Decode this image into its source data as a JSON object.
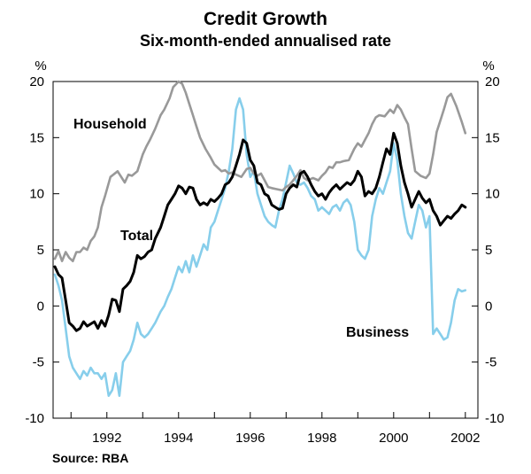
{
  "chart_data": {
    "type": "line",
    "title": "Credit Growth",
    "subtitle": "Six-month-ended annualised rate",
    "unit_left": "%",
    "unit_right": "%",
    "source": "Source: RBA",
    "xlabel": "",
    "ylabel": "%",
    "xlim": [
      1990.5,
      2002.35
    ],
    "ylim": [
      -10,
      20
    ],
    "x_ticks": [
      1992,
      1994,
      1996,
      1998,
      2000,
      2002
    ],
    "x_tick_labels": [
      "1992",
      "1994",
      "1996",
      "1998",
      "2000",
      "2002"
    ],
    "y_ticks": [
      20,
      15,
      10,
      5,
      0,
      -5,
      -10
    ],
    "y_tick_labels": [
      "20",
      "15",
      "10",
      "5",
      "0",
      "-5",
      "-10"
    ],
    "grid": false,
    "series": [
      {
        "name": "Household",
        "label": "Household",
        "color": "#999999",
        "x": [
          1990.55,
          1990.65,
          1990.75,
          1990.85,
          1990.95,
          1991.05,
          1991.15,
          1991.25,
          1991.35,
          1991.45,
          1991.55,
          1991.65,
          1991.75,
          1991.85,
          1991.95,
          1992.1,
          1992.3,
          1992.5,
          1992.6,
          1992.7,
          1992.85,
          1993.0,
          1993.1,
          1993.2,
          1993.35,
          1993.5,
          1993.6,
          1993.75,
          1993.85,
          1994.0,
          1994.1,
          1994.2,
          1994.3,
          1994.4,
          1994.5,
          1994.6,
          1994.75,
          1994.9,
          1995.0,
          1995.1,
          1995.2,
          1995.3,
          1995.4,
          1995.5,
          1995.6,
          1995.75,
          1995.9,
          1996.0,
          1996.1,
          1996.2,
          1996.3,
          1996.4,
          1996.5,
          1996.6,
          1996.75,
          1996.9,
          1997.0,
          1997.1,
          1997.2,
          1997.3,
          1997.4,
          1997.5,
          1997.6,
          1997.75,
          1997.9,
          1998.0,
          1998.1,
          1998.2,
          1998.3,
          1998.4,
          1998.5,
          1998.6,
          1998.75,
          1998.9,
          1999.0,
          1999.1,
          1999.2,
          1999.3,
          1999.4,
          1999.5,
          1999.6,
          1999.75,
          1999.9,
          2000.0,
          2000.1,
          2000.2,
          2000.3,
          2000.4,
          2000.5,
          2000.6,
          2000.75,
          2000.9,
          2001.0,
          2001.1,
          2001.2,
          2001.3,
          2001.4,
          2001.5,
          2001.6,
          2001.75,
          2001.9,
          2002.0
        ],
        "y": [
          4.2,
          4.9,
          4.0,
          4.8,
          4.3,
          4.0,
          4.8,
          4.8,
          5.2,
          5.0,
          5.8,
          6.2,
          7.0,
          8.8,
          9.8,
          11.5,
          12.0,
          11.0,
          11.7,
          11.6,
          12.0,
          13.5,
          14.2,
          14.8,
          15.8,
          17.0,
          17.5,
          18.5,
          19.5,
          20.0,
          19.8,
          19.0,
          18.0,
          17.0,
          16.0,
          15.0,
          14.0,
          13.2,
          12.6,
          12.3,
          12.0,
          12.1,
          11.8,
          11.9,
          11.7,
          11.5,
          12.2,
          12.3,
          11.8,
          11.6,
          11.8,
          11.2,
          10.6,
          10.5,
          10.4,
          10.3,
          10.6,
          10.8,
          11.2,
          11.6,
          12.1,
          11.4,
          11.2,
          11.4,
          11.2,
          11.6,
          11.9,
          12.4,
          12.3,
          12.8,
          12.8,
          12.9,
          13.0,
          14.0,
          14.5,
          14.2,
          14.8,
          15.4,
          16.2,
          16.8,
          17.0,
          16.9,
          17.5,
          17.2,
          17.9,
          17.5,
          16.8,
          16.2,
          14.0,
          12.0,
          11.6,
          11.4,
          11.8,
          13.5,
          15.5,
          16.5,
          17.5,
          18.6,
          18.9,
          17.8,
          16.4,
          15.4
        ]
      },
      {
        "name": "Total",
        "label": "Total",
        "color": "#000000",
        "x": [
          1990.55,
          1990.65,
          1990.75,
          1990.85,
          1990.95,
          1991.05,
          1991.15,
          1991.25,
          1991.35,
          1991.45,
          1991.55,
          1991.65,
          1991.75,
          1991.85,
          1991.95,
          1992.05,
          1992.15,
          1992.25,
          1992.35,
          1992.45,
          1992.55,
          1992.65,
          1992.75,
          1992.85,
          1992.95,
          1993.05,
          1993.15,
          1993.25,
          1993.35,
          1993.5,
          1993.6,
          1993.7,
          1993.8,
          1993.9,
          1994.0,
          1994.1,
          1994.2,
          1994.3,
          1994.4,
          1994.5,
          1994.6,
          1994.7,
          1994.8,
          1994.9,
          1995.0,
          1995.1,
          1995.2,
          1995.3,
          1995.4,
          1995.5,
          1995.6,
          1995.7,
          1995.8,
          1995.9,
          1996.0,
          1996.1,
          1996.2,
          1996.3,
          1996.4,
          1996.5,
          1996.6,
          1996.7,
          1996.8,
          1996.9,
          1997.0,
          1997.1,
          1997.2,
          1997.3,
          1997.4,
          1997.5,
          1997.6,
          1997.7,
          1997.8,
          1997.9,
          1998.0,
          1998.1,
          1998.2,
          1998.3,
          1998.4,
          1998.5,
          1998.6,
          1998.7,
          1998.8,
          1998.9,
          1999.0,
          1999.1,
          1999.2,
          1999.3,
          1999.4,
          1999.5,
          1999.6,
          1999.7,
          1999.8,
          1999.9,
          2000.0,
          2000.1,
          2000.2,
          2000.3,
          2000.4,
          2000.5,
          2000.6,
          2000.7,
          2000.8,
          2000.9,
          2001.0,
          2001.1,
          2001.2,
          2001.3,
          2001.4,
          2001.5,
          2001.6,
          2001.7,
          2001.8,
          2001.9,
          2002.0
        ],
        "y": [
          3.5,
          2.8,
          2.5,
          0.5,
          -1.5,
          -1.8,
          -2.2,
          -2.0,
          -1.4,
          -1.8,
          -1.6,
          -1.4,
          -2.0,
          -1.3,
          -1.8,
          -0.8,
          0.6,
          0.5,
          -0.5,
          1.5,
          1.8,
          2.2,
          3.0,
          4.5,
          4.2,
          4.4,
          4.8,
          5.0,
          6.0,
          7.0,
          8.0,
          9.0,
          9.5,
          10.0,
          10.7,
          10.5,
          10.0,
          10.6,
          10.5,
          9.5,
          9.0,
          9.2,
          9.0,
          9.5,
          9.3,
          9.6,
          10.0,
          10.8,
          11.0,
          11.5,
          12.5,
          13.5,
          14.8,
          14.5,
          13.0,
          12.5,
          11.0,
          10.8,
          10.0,
          9.8,
          9.0,
          8.8,
          8.6,
          8.7,
          10.0,
          10.5,
          10.8,
          10.6,
          11.8,
          12.0,
          11.5,
          10.8,
          10.2,
          9.8,
          10.0,
          9.5,
          10.1,
          10.5,
          10.8,
          10.4,
          10.7,
          11.0,
          10.8,
          11.2,
          12.0,
          11.5,
          9.8,
          10.2,
          10.0,
          10.5,
          11.5,
          12.8,
          14.0,
          13.5,
          15.4,
          14.5,
          12.5,
          11.0,
          10.0,
          8.8,
          9.5,
          10.2,
          9.6,
          9.2,
          9.5,
          8.5,
          8.0,
          7.2,
          7.6,
          8.0,
          7.8,
          8.2,
          8.5,
          9.0,
          8.8
        ]
      },
      {
        "name": "Business",
        "label": "Business",
        "color": "#87CEEB",
        "x": [
          1990.55,
          1990.65,
          1990.75,
          1990.85,
          1990.95,
          1991.05,
          1991.15,
          1991.25,
          1991.35,
          1991.45,
          1991.55,
          1991.65,
          1991.75,
          1991.85,
          1991.95,
          1992.05,
          1992.15,
          1992.25,
          1992.35,
          1992.45,
          1992.55,
          1992.65,
          1992.75,
          1992.85,
          1992.95,
          1993.05,
          1993.15,
          1993.25,
          1993.35,
          1993.5,
          1993.6,
          1993.7,
          1993.8,
          1993.9,
          1994.0,
          1994.1,
          1994.2,
          1994.3,
          1994.4,
          1994.5,
          1994.6,
          1994.7,
          1994.8,
          1994.9,
          1995.0,
          1995.1,
          1995.2,
          1995.3,
          1995.4,
          1995.5,
          1995.6,
          1995.7,
          1995.8,
          1995.9,
          1996.0,
          1996.1,
          1996.2,
          1996.3,
          1996.4,
          1996.5,
          1996.6,
          1996.7,
          1996.8,
          1996.9,
          1997.0,
          1997.1,
          1997.2,
          1997.3,
          1997.4,
          1997.5,
          1997.6,
          1997.7,
          1997.8,
          1997.9,
          1998.0,
          1998.1,
          1998.2,
          1998.3,
          1998.4,
          1998.5,
          1998.6,
          1998.7,
          1998.8,
          1998.9,
          1999.0,
          1999.1,
          1999.2,
          1999.3,
          1999.4,
          1999.5,
          1999.6,
          1999.7,
          1999.8,
          1999.9,
          2000.0,
          2000.1,
          2000.2,
          2000.3,
          2000.4,
          2000.5,
          2000.6,
          2000.7,
          2000.8,
          2000.9,
          2001.0,
          2001.1,
          2001.2,
          2001.3,
          2001.4,
          2001.5,
          2001.6,
          2001.7,
          2001.8,
          2001.9,
          2002.0
        ],
        "y": [
          2.8,
          1.8,
          0.5,
          -2.0,
          -4.5,
          -5.5,
          -6.0,
          -6.5,
          -5.8,
          -6.2,
          -5.5,
          -6.0,
          -6.0,
          -6.5,
          -6.0,
          -8.0,
          -7.5,
          -6.0,
          -8.0,
          -5.0,
          -4.5,
          -4.0,
          -3.0,
          -1.5,
          -2.5,
          -2.8,
          -2.5,
          -2.0,
          -1.5,
          -0.5,
          0.0,
          0.8,
          1.5,
          2.5,
          3.5,
          3.0,
          4.0,
          3.0,
          4.5,
          3.5,
          4.5,
          5.5,
          5.0,
          7.0,
          7.5,
          8.5,
          9.5,
          10.5,
          12.0,
          14.0,
          17.5,
          18.5,
          17.5,
          13.5,
          11.5,
          12.0,
          10.0,
          9.0,
          8.0,
          7.5,
          7.2,
          7.0,
          8.5,
          9.5,
          11.0,
          12.5,
          11.8,
          11.0,
          10.8,
          11.0,
          10.5,
          9.8,
          9.5,
          8.5,
          8.8,
          8.5,
          8.2,
          8.8,
          9.0,
          8.5,
          9.2,
          9.5,
          9.0,
          7.5,
          5.0,
          4.5,
          4.2,
          5.0,
          8.0,
          9.5,
          10.5,
          10.0,
          11.0,
          12.0,
          14.5,
          13.0,
          10.0,
          8.0,
          6.5,
          6.0,
          7.5,
          9.0,
          8.5,
          7.0,
          8.0,
          -2.5,
          -2.0,
          -2.5,
          -3.0,
          -2.8,
          -1.5,
          0.5,
          1.5,
          1.3,
          1.4
        ]
      }
    ]
  }
}
